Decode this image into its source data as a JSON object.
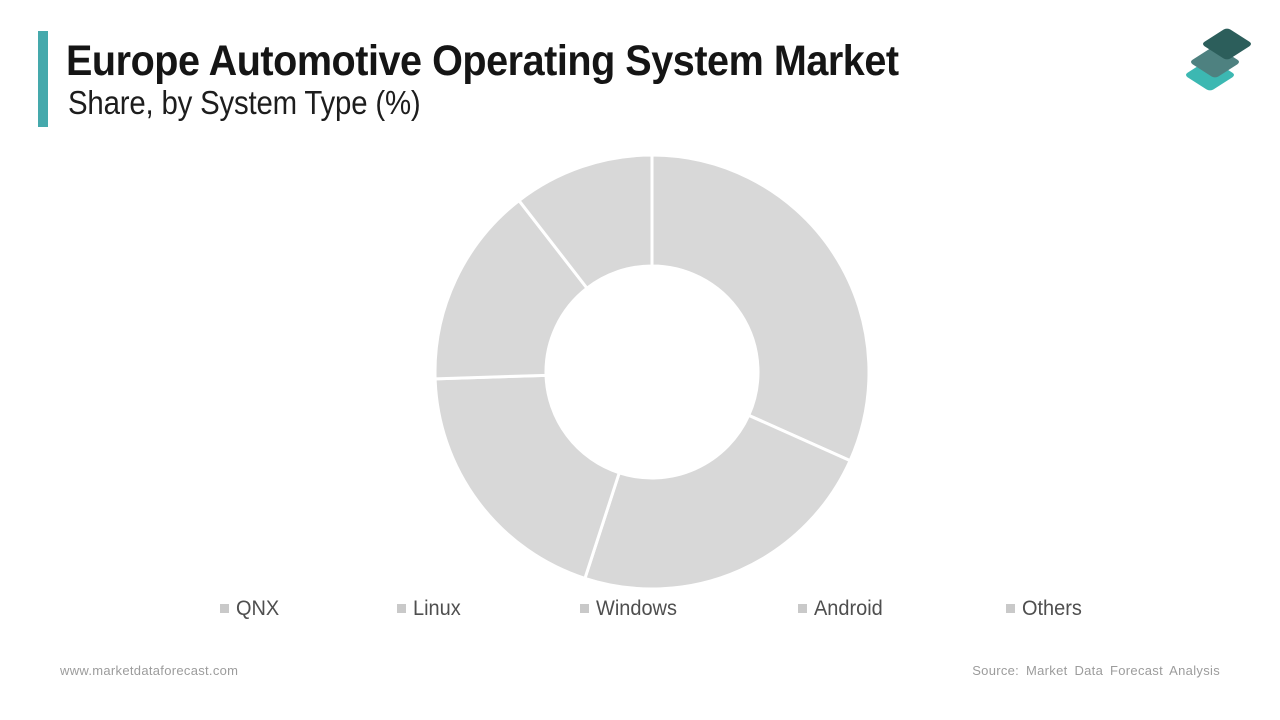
{
  "accent_color": "#45a9ac",
  "header": {
    "title": "Europe Automotive Operating System Market",
    "subtitle": "Share, by System Type (%)"
  },
  "logo": {
    "name": "market-data-forecast-logo",
    "layer_colors": {
      "top": "#2c5e5b",
      "middle": "#4e8180",
      "bottom": "#3cb8b2"
    }
  },
  "chart_data": {
    "type": "pie",
    "subtype": "donut",
    "title": "Europe Automotive Operating System Market Share, by System Type (%)",
    "categories": [
      "QNX",
      "Linux",
      "Windows",
      "Android",
      "Others"
    ],
    "values": [
      31.7,
      23.3,
      19.5,
      15.0,
      10.5
    ],
    "unit": "%",
    "start_angle_deg": 0,
    "direction": "clockwise",
    "slice_color": "#d8d8d8",
    "slice_border_color": "#ffffff",
    "inner_radius_ratio": 0.49,
    "data_labels": "none",
    "legend_position": "bottom",
    "legend_marker_color": "#c9c9c9"
  },
  "footer": {
    "website": "www.marketdataforecast.com",
    "source": "Source: Market Data Forecast Analysis"
  }
}
